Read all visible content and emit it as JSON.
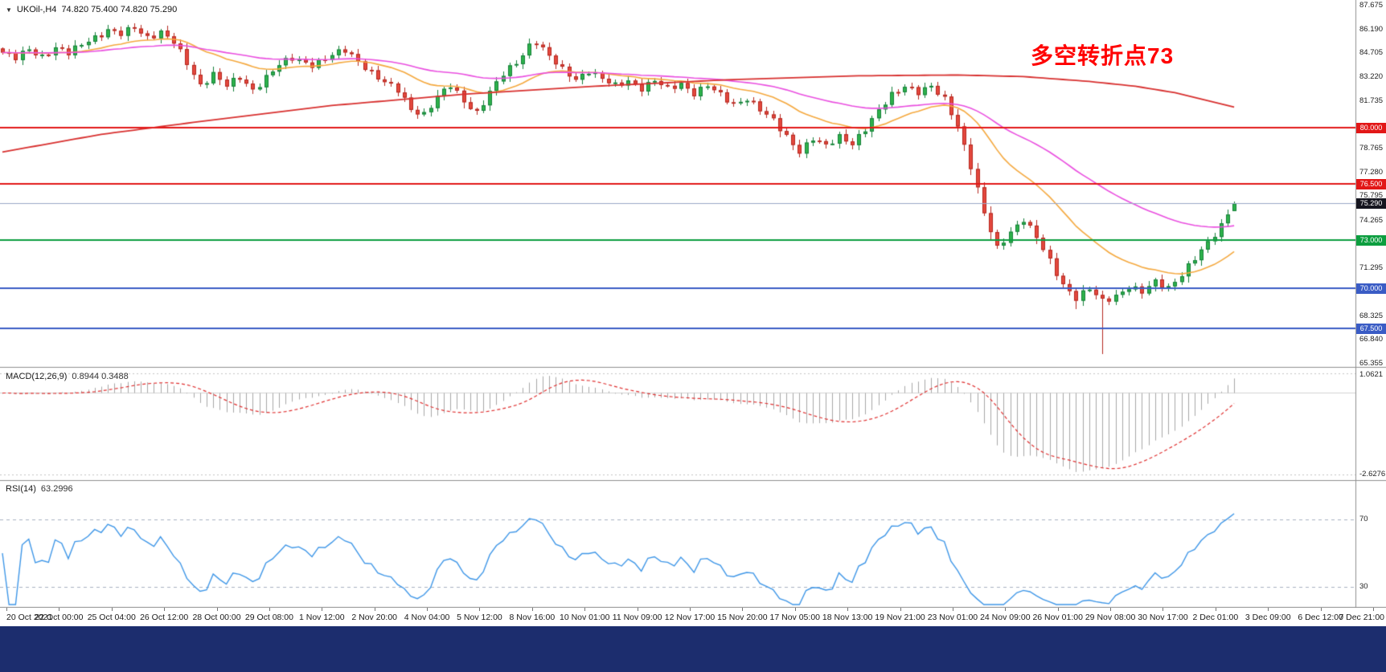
{
  "window": {
    "dropdown_icon": "▼",
    "symbol_period": "UKOil-,H4",
    "ohlc_text": "74.820 75.400 74.820 75.290"
  },
  "annotation": {
    "text": "多空转折点73",
    "color": "#ff0000"
  },
  "price_axis": {
    "max": 87.675,
    "min": 65.355,
    "labels": [
      "87.675",
      "86.190",
      "84.705",
      "83.220",
      "81.735",
      "80.250",
      "78.765",
      "77.280",
      "75.795",
      "74.265",
      "72.780",
      "71.295",
      "69.810",
      "68.325",
      "66.840",
      "65.355"
    ]
  },
  "hlines": [
    {
      "value": 80.0,
      "label": "80.000",
      "color": "#e21717"
    },
    {
      "value": 76.5,
      "label": "76.500",
      "color": "#e21717"
    },
    {
      "value": 73.0,
      "label": "73.000",
      "color": "#0c9e3f"
    },
    {
      "value": 70.0,
      "label": "70.000",
      "color": "#3a5cc5"
    },
    {
      "value": 67.5,
      "label": "67.500",
      "color": "#3a5cc5"
    }
  ],
  "current_price": {
    "value": 75.29,
    "label": "75.290",
    "tag_color": "#15151f",
    "line_color": "#9aa8c8"
  },
  "chart_data": {
    "type": "candlestick",
    "symbol": "UKOil-",
    "timeframe": "H4",
    "title": "UKOil-,H4 74.820 75.400 74.820 75.290",
    "bars": 188,
    "price_range": [
      65.355,
      87.675
    ],
    "close_waypoints": [
      [
        0,
        84.7
      ],
      [
        2,
        84.3
      ],
      [
        4,
        84.9
      ],
      [
        6,
        84.5
      ],
      [
        8,
        85.0
      ],
      [
        10,
        84.6
      ],
      [
        13,
        85.5
      ],
      [
        16,
        86.1
      ],
      [
        18,
        85.8
      ],
      [
        20,
        86.25
      ],
      [
        22,
        85.7
      ],
      [
        24,
        86.0
      ],
      [
        26,
        85.3
      ],
      [
        28,
        84.0
      ],
      [
        30,
        82.7
      ],
      [
        32,
        83.4
      ],
      [
        34,
        82.6
      ],
      [
        36,
        83.1
      ],
      [
        38,
        82.4
      ],
      [
        40,
        83.2
      ],
      [
        42,
        83.9
      ],
      [
        44,
        84.3
      ],
      [
        47,
        84.0
      ],
      [
        50,
        84.5
      ],
      [
        52,
        84.8
      ],
      [
        54,
        84.2
      ],
      [
        56,
        83.5
      ],
      [
        58,
        82.8
      ],
      [
        60,
        82.3
      ],
      [
        62,
        81.2
      ],
      [
        64,
        80.9
      ],
      [
        66,
        81.9
      ],
      [
        68,
        82.6
      ],
      [
        70,
        81.7
      ],
      [
        72,
        81.0
      ],
      [
        74,
        82.2
      ],
      [
        76,
        83.3
      ],
      [
        78,
        84.1
      ],
      [
        80,
        85.2
      ],
      [
        81,
        85.4
      ],
      [
        83,
        84.4
      ],
      [
        85,
        83.6
      ],
      [
        87,
        83.1
      ],
      [
        89,
        83.6
      ],
      [
        91,
        83.0
      ],
      [
        93,
        82.6
      ],
      [
        95,
        83.0
      ],
      [
        97,
        82.5
      ],
      [
        99,
        82.9
      ],
      [
        101,
        82.4
      ],
      [
        103,
        82.8
      ],
      [
        105,
        82.2
      ],
      [
        107,
        82.6
      ],
      [
        109,
        82.0
      ],
      [
        111,
        81.5
      ],
      [
        113,
        81.9
      ],
      [
        115,
        81.1
      ],
      [
        117,
        80.4
      ],
      [
        119,
        79.5
      ],
      [
        121,
        78.6
      ],
      [
        123,
        79.3
      ],
      [
        125,
        78.8
      ],
      [
        127,
        79.5
      ],
      [
        129,
        79.1
      ],
      [
        131,
        79.9
      ],
      [
        133,
        81.0
      ],
      [
        135,
        82.1
      ],
      [
        137,
        82.7
      ],
      [
        139,
        82.2
      ],
      [
        141,
        82.5
      ],
      [
        143,
        81.8
      ],
      [
        145,
        80.2
      ],
      [
        147,
        77.6
      ],
      [
        149,
        74.6
      ],
      [
        151,
        72.5
      ],
      [
        153,
        73.6
      ],
      [
        155,
        74.3
      ],
      [
        157,
        73.1
      ],
      [
        159,
        71.7
      ],
      [
        161,
        70.3
      ],
      [
        163,
        69.4
      ],
      [
        165,
        69.9
      ],
      [
        167,
        69.2
      ],
      [
        169,
        69.6
      ],
      [
        171,
        70.1
      ],
      [
        173,
        69.7
      ],
      [
        175,
        70.4
      ],
      [
        177,
        70.1
      ],
      [
        179,
        70.9
      ],
      [
        181,
        71.8
      ],
      [
        183,
        72.8
      ],
      [
        185,
        74.0
      ],
      [
        186,
        74.6
      ],
      [
        187,
        75.29
      ]
    ],
    "anomaly_wicks": [
      {
        "i": 163,
        "low": 68.7
      },
      {
        "i": 167,
        "low": 65.9
      }
    ],
    "last_bar": {
      "open": 74.82,
      "high": 75.4,
      "low": 74.82,
      "close": 75.29
    },
    "candle_colors": {
      "up_fill": "#2eb24b",
      "up_edge": "#15803a",
      "down_fill": "#e4483e",
      "down_edge": "#b5271f"
    },
    "moving_averages": [
      {
        "name": "ma-fast",
        "period": 21,
        "color": "#f5a93f"
      },
      {
        "name": "ma-mid",
        "period": 55,
        "color": "#ea4fe0"
      },
      {
        "name": "ma-slow",
        "color": "#d8302f",
        "waypoints": [
          [
            0,
            78.5
          ],
          [
            15,
            79.6
          ],
          [
            30,
            80.4
          ],
          [
            50,
            81.4
          ],
          [
            70,
            82.1
          ],
          [
            90,
            82.6
          ],
          [
            110,
            83.0
          ],
          [
            130,
            83.25
          ],
          [
            145,
            83.3
          ],
          [
            155,
            83.2
          ],
          [
            165,
            82.9
          ],
          [
            172,
            82.6
          ],
          [
            178,
            82.2
          ],
          [
            182,
            81.8
          ],
          [
            187,
            81.3
          ]
        ]
      }
    ],
    "time_labels": [
      "20 Oct 2021",
      "22 Oct 00:00",
      "25 Oct 04:00",
      "26 Oct 12:00",
      "28 Oct 00:00",
      "29 Oct 08:00",
      "1 Nov 12:00",
      "2 Nov 20:00",
      "4 Nov 04:00",
      "5 Nov 12:00",
      "8 Nov 16:00",
      "10 Nov 01:00",
      "11 Nov 09:00",
      "12 Nov 17:00",
      "15 Nov 20:00",
      "17 Nov 05:00",
      "18 Nov 13:00",
      "19 Nov 21:00",
      "23 Nov 01:00",
      "24 Nov 09:00",
      "26 Nov 01:00",
      "29 Nov 08:00",
      "30 Nov 17:00",
      "2 Dec 01:00",
      "3 Dec 09:00",
      "6 Dec 12:00",
      "7 Dec 21:00"
    ],
    "macd": {
      "label": "MACD(12,26,9)",
      "values_text": "0.8944 0.3488",
      "fast": 12,
      "slow": 26,
      "signal_period": 9,
      "axis_max": "1.0621",
      "axis_min": "-2.6276",
      "histogram_color": "#a8a8a8",
      "signal_color": "#e03030"
    },
    "rsi": {
      "label": "RSI(14)",
      "value_text": "63.2996",
      "period": 14,
      "levels": [
        70,
        30
      ],
      "color": "#3f97e8"
    }
  }
}
